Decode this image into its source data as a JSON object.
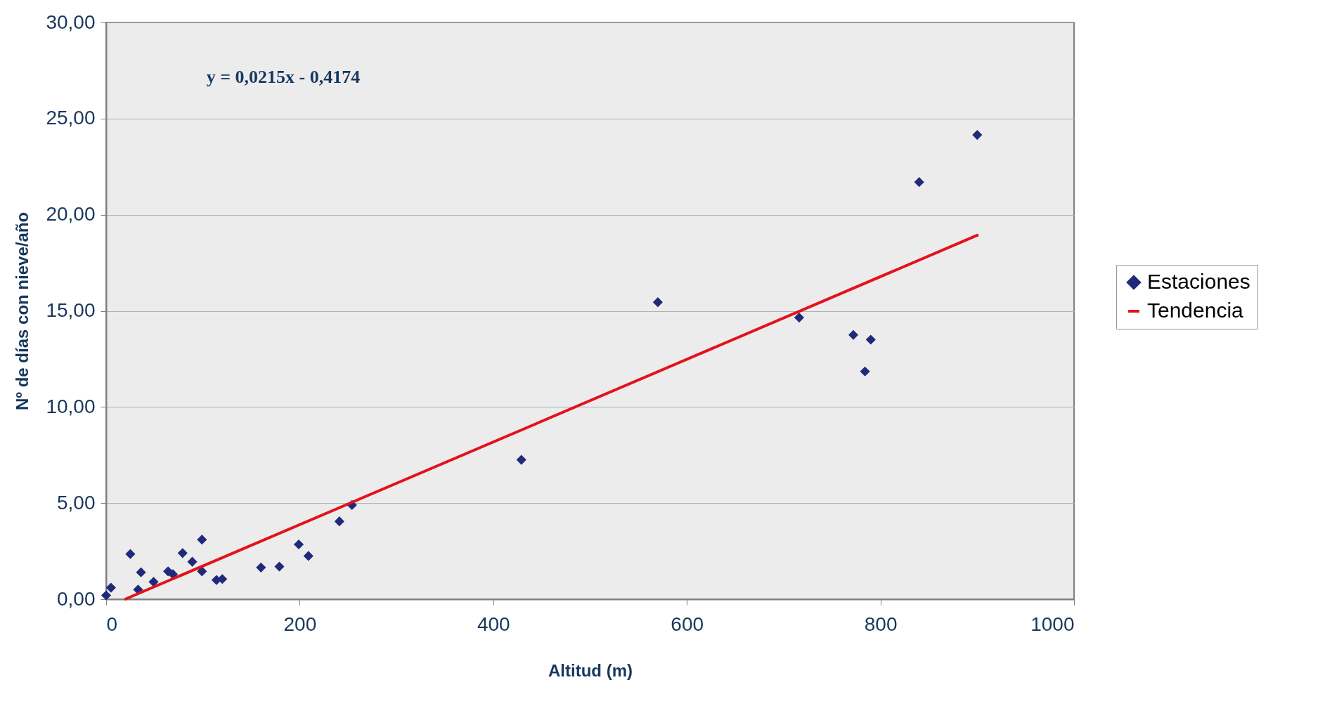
{
  "chart_data": {
    "type": "scatter",
    "xlabel": "Altitud (m)",
    "ylabel": "Nº de días con nieve/año",
    "annotations": [
      "y = 0,0215x - 0,4174"
    ],
    "xlim": [
      0,
      1000
    ],
    "xticks": [
      0,
      200,
      400,
      600,
      800,
      1000
    ],
    "ylim": [
      0,
      30
    ],
    "yticks": [
      {
        "value": 0,
        "label": "0,00"
      },
      {
        "value": 5,
        "label": "5,00"
      },
      {
        "value": 10,
        "label": "10,00"
      },
      {
        "value": 15,
        "label": "15,00"
      },
      {
        "value": 20,
        "label": "20,00"
      },
      {
        "value": 25,
        "label": "25,00"
      },
      {
        "value": 30,
        "label": "30,00"
      }
    ],
    "grid": "y",
    "legend": "right",
    "series": [
      {
        "name": "Estaciones",
        "marker": "diamond",
        "color": "#1f2a7a",
        "x": [
          0,
          5,
          25,
          33,
          36,
          49,
          64,
          69,
          79,
          89,
          99,
          99,
          114,
          120,
          160,
          179,
          199,
          209,
          241,
          254,
          429,
          570,
          716,
          772,
          790,
          784,
          840,
          900
        ],
        "values": [
          0.2,
          0.6,
          2.35,
          0.5,
          1.4,
          0.9,
          1.45,
          1.3,
          2.4,
          1.95,
          3.1,
          1.45,
          1.0,
          1.05,
          1.65,
          1.7,
          2.85,
          2.25,
          4.05,
          4.9,
          7.25,
          15.45,
          14.65,
          13.75,
          13.5,
          11.85,
          21.7,
          24.15
        ]
      },
      {
        "name": "Tendencia",
        "type": "line",
        "color": "#e3121b",
        "x": [
          20,
          900
        ],
        "values": [
          0.01,
          18.93
        ]
      }
    ]
  }
}
